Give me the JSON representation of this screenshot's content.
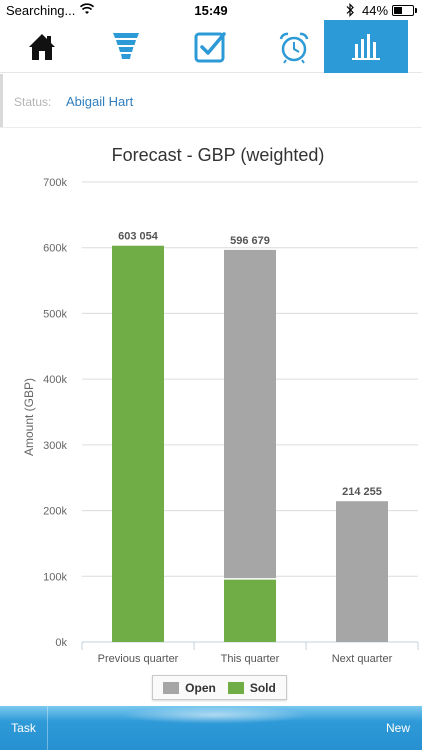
{
  "status_bar": {
    "carrier": "Searching...",
    "time": "15:49",
    "battery": "44%",
    "battery_level": 0.44,
    "icons": [
      "wifi-icon",
      "bluetooth-icon",
      "battery-icon"
    ]
  },
  "nav": {
    "tabs": [
      {
        "icon": "home-icon",
        "active": false
      },
      {
        "icon": "funnel-icon",
        "active": false
      },
      {
        "icon": "checkbox-icon",
        "active": false
      },
      {
        "icon": "alarm-clock-icon",
        "active": false
      },
      {
        "icon": "bar-chart-icon",
        "active": true
      }
    ],
    "accent": "#2b9ad6"
  },
  "filter": {
    "label": "Status:",
    "value": "Abigail Hart"
  },
  "chart_data": {
    "type": "bar",
    "stacked": true,
    "title": "Forecast - GBP (weighted)",
    "ylabel": "Amount (GBP)",
    "xlabel": "",
    "categories": [
      "Previous quarter",
      "This quarter",
      "Next quarter"
    ],
    "series": [
      {
        "name": "Sold",
        "color": "#70ad47",
        "values": [
          603054,
          96000,
          0
        ]
      },
      {
        "name": "Open",
        "color": "#a6a6a6",
        "values": [
          0,
          500679,
          214255
        ]
      }
    ],
    "totals": [
      603054,
      596679,
      214255
    ],
    "total_labels": [
      "603 054",
      "596 679",
      "214 255"
    ],
    "ylim": [
      0,
      700000
    ],
    "yticks": [
      0,
      100000,
      200000,
      300000,
      400000,
      500000,
      600000,
      700000
    ],
    "ytick_labels": [
      "0k",
      "100k",
      "200k",
      "300k",
      "400k",
      "500k",
      "600k",
      "700k"
    ],
    "grid": true,
    "legend_position": "bottom-center"
  },
  "legend": {
    "items": [
      {
        "label": "Open",
        "color": "#a6a6a6"
      },
      {
        "label": "Sold",
        "color": "#70ad47"
      }
    ]
  },
  "toolbar": {
    "left_label": "Task",
    "right_label": "New"
  }
}
